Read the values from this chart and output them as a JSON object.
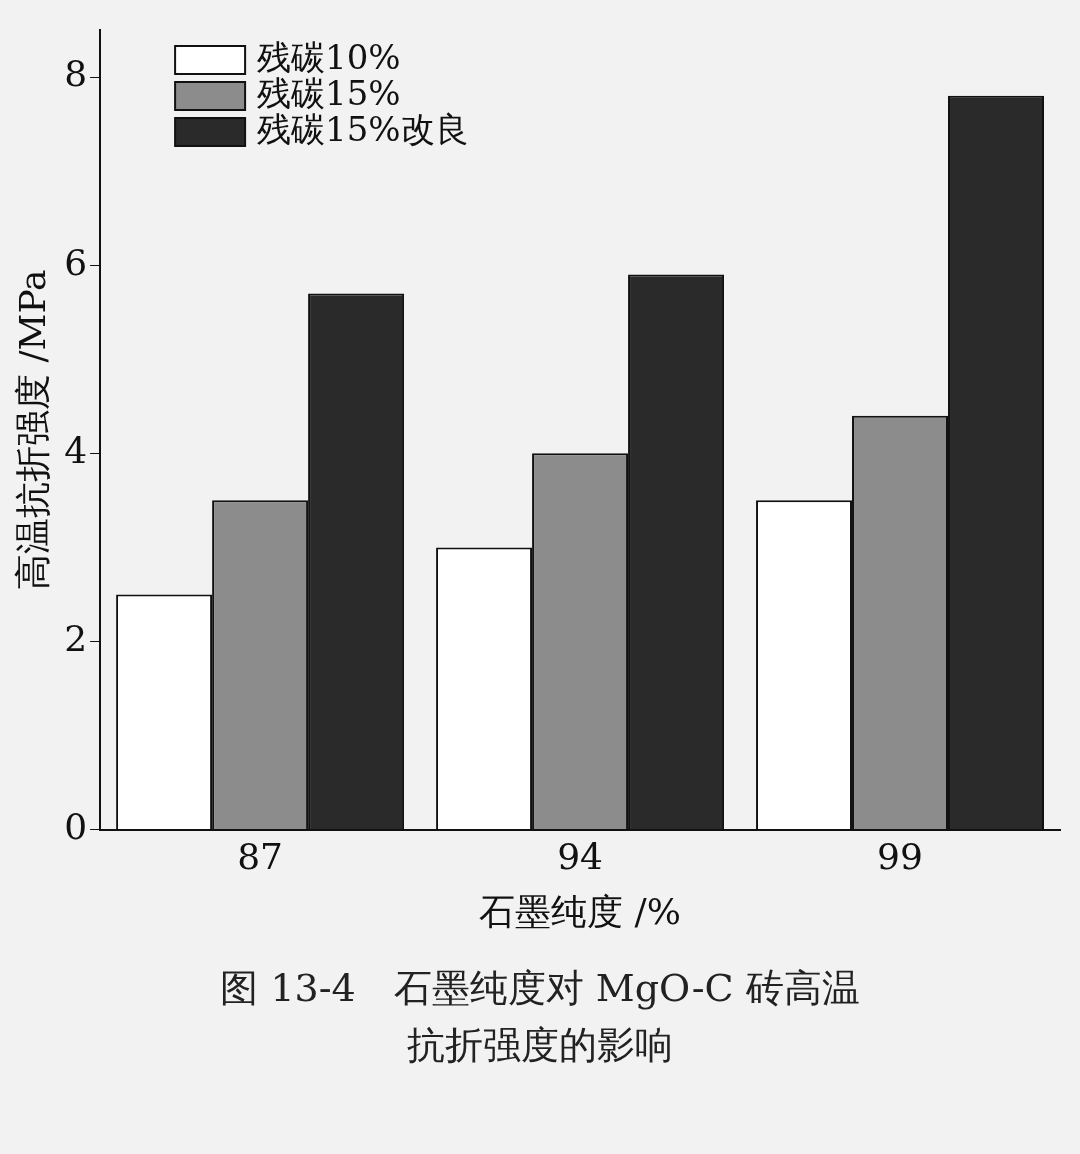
{
  "chart_data": {
    "type": "bar",
    "xlabel": "石墨纯度 /%",
    "ylabel": "高温抗折强度 /MPa",
    "categories": [
      "87",
      "94",
      "99"
    ],
    "series": [
      {
        "name": "残碳10%",
        "color": "#ffffff",
        "values": [
          2.5,
          3.0,
          3.5
        ]
      },
      {
        "name": "残碳15%",
        "color": "#8c8c8c",
        "values": [
          3.5,
          4.0,
          4.4
        ]
      },
      {
        "name": "残碳15%改良",
        "color": "#2a2a2a",
        "values": [
          5.7,
          5.9,
          7.8
        ]
      }
    ],
    "ylim": [
      0,
      8.5
    ],
    "yticks": [
      0,
      2,
      4,
      6,
      8
    ],
    "legend": "top left",
    "grid": false,
    "annotations": [
      "图 13-4　石墨纯度对 MgO-C 砖高温抗折强度的影响"
    ]
  }
}
